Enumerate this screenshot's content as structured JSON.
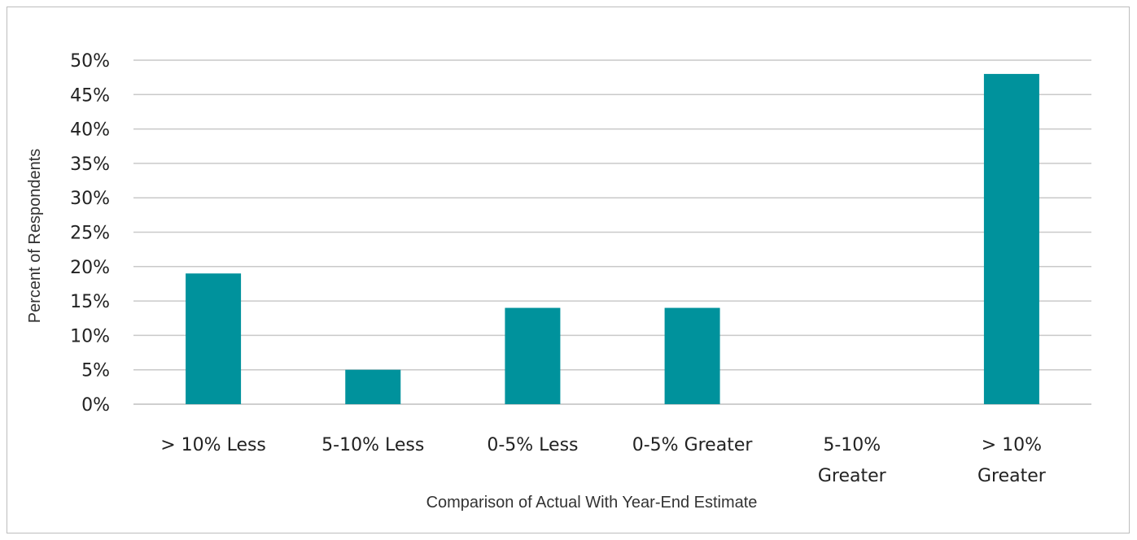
{
  "chart_data": {
    "type": "bar",
    "title": "",
    "xlabel": "Comparison of Actual With Year-End Estimate",
    "ylabel": "Percent of Respondents",
    "categories": [
      "> 10% Less",
      "5-10% Less",
      "0-5% Less",
      "0-5% Greater",
      "5-10% Greater",
      "> 10% Greater"
    ],
    "category_lines": [
      [
        "> 10% Less"
      ],
      [
        "5-10% Less"
      ],
      [
        "0-5% Less"
      ],
      [
        "0-5% Greater"
      ],
      [
        "5-10%",
        "Greater"
      ],
      [
        "> 10%",
        "Greater"
      ]
    ],
    "values": [
      19,
      5,
      14,
      14,
      0,
      48
    ],
    "ylim": [
      0,
      50
    ],
    "yticks": [
      0,
      5,
      10,
      15,
      20,
      25,
      30,
      35,
      40,
      45,
      50
    ],
    "ytick_labels": [
      "0%",
      "5%",
      "10%",
      "15%",
      "20%",
      "25%",
      "30%",
      "35%",
      "40%",
      "45%",
      "50%"
    ],
    "grid": true,
    "legend": "none",
    "bar_color": "#00929c",
    "grid_color": "#c9c9c9"
  }
}
